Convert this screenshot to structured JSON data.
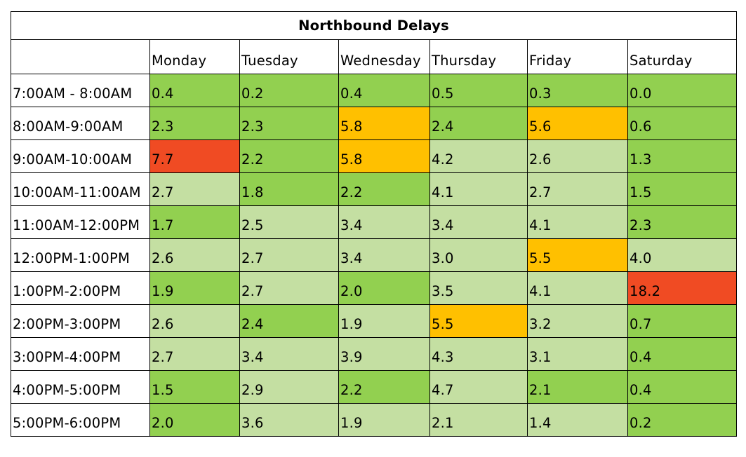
{
  "chart_data": {
    "type": "table",
    "title": "Northbound Delays",
    "columns": [
      "Monday",
      "Tuesday",
      "Wednesday",
      "Thursday",
      "Friday",
      "Saturday"
    ],
    "rows": [
      {
        "label": "7:00AM - 8:00AM",
        "values": [
          "0.4",
          "0.2",
          "0.4",
          "0.5",
          "0.3",
          "0.0"
        ],
        "levels": [
          "green",
          "green",
          "green",
          "green",
          "green",
          "green"
        ]
      },
      {
        "label": "8:00AM-9:00AM",
        "values": [
          "2.3",
          "2.3",
          "5.8",
          "2.4",
          "5.6",
          "0.6"
        ],
        "levels": [
          "green",
          "green",
          "orange",
          "green",
          "orange",
          "green"
        ]
      },
      {
        "label": "9:00AM-10:00AM",
        "values": [
          "7.7",
          "2.2",
          "5.8",
          "4.2",
          "2.6",
          "1.3"
        ],
        "levels": [
          "red",
          "green",
          "orange",
          "light",
          "light",
          "green"
        ]
      },
      {
        "label": "10:00AM-11:00AM",
        "values": [
          "2.7",
          "1.8",
          "2.2",
          "4.1",
          "2.7",
          "1.5"
        ],
        "levels": [
          "light",
          "green",
          "green",
          "light",
          "light",
          "green"
        ]
      },
      {
        "label": "11:00AM-12:00PM",
        "values": [
          "1.7",
          "2.5",
          "3.4",
          "3.4",
          "4.1",
          "2.3"
        ],
        "levels": [
          "green",
          "light",
          "light",
          "light",
          "light",
          "green"
        ]
      },
      {
        "label": "12:00PM-1:00PM",
        "values": [
          "2.6",
          "2.7",
          "3.4",
          "3.0",
          "5.5",
          "4.0"
        ],
        "levels": [
          "light",
          "light",
          "light",
          "light",
          "orange",
          "light"
        ]
      },
      {
        "label": "1:00PM-2:00PM",
        "values": [
          "1.9",
          "2.7",
          "2.0",
          "3.5",
          "4.1",
          "18.2"
        ],
        "levels": [
          "green",
          "light",
          "green",
          "light",
          "light",
          "red"
        ]
      },
      {
        "label": "2:00PM-3:00PM",
        "values": [
          "2.6",
          "2.4",
          "1.9",
          "5.5",
          "3.2",
          "0.7"
        ],
        "levels": [
          "light",
          "green",
          "light",
          "orange",
          "light",
          "green"
        ]
      },
      {
        "label": "3:00PM-4:00PM",
        "values": [
          "2.7",
          "3.4",
          "3.9",
          "4.3",
          "3.1",
          "0.4"
        ],
        "levels": [
          "light",
          "light",
          "light",
          "light",
          "light",
          "green"
        ]
      },
      {
        "label": "4:00PM-5:00PM",
        "values": [
          "1.5",
          "2.9",
          "2.2",
          "4.7",
          "2.1",
          "0.4"
        ],
        "levels": [
          "green",
          "light",
          "green",
          "light",
          "green",
          "green"
        ]
      },
      {
        "label": "5:00PM-6:00PM",
        "values": [
          "2.0",
          "3.6",
          "1.9",
          "2.1",
          "1.4",
          "0.2"
        ],
        "levels": [
          "green",
          "light",
          "light",
          "light",
          "light",
          "green"
        ]
      }
    ],
    "colors": {
      "green": "#92d050",
      "light": "#c4dfa2",
      "orange": "#ffc000",
      "red": "#f04b23"
    }
  }
}
